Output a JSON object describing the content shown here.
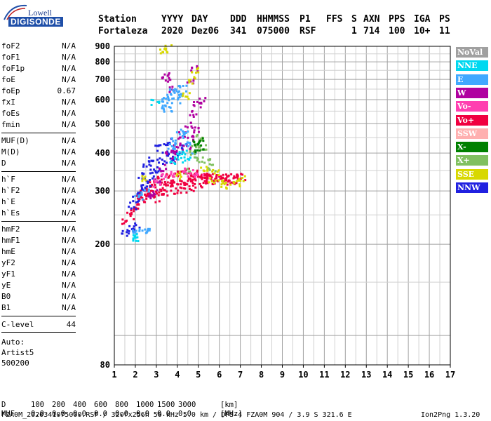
{
  "logo": {
    "lowell": "Lowell",
    "digisonde": "DIGISONDE"
  },
  "header": {
    "row1": [
      "Station",
      "YYYY",
      "DAY",
      "DDD",
      "HHMMSS",
      "P1",
      "FFS",
      "S",
      "AXN",
      "PPS",
      "IGA",
      "PS"
    ],
    "row2": [
      "Fortaleza",
      "2020",
      "Dez06",
      "341",
      "075000",
      "RSF",
      "",
      "1",
      "714",
      "100",
      "10+",
      "11"
    ]
  },
  "params_group1": [
    {
      "name": "foF2",
      "value": "N/A"
    },
    {
      "name": "foF1",
      "value": "N/A"
    },
    {
      "name": "foF1p",
      "value": "N/A"
    },
    {
      "name": "foE",
      "value": "N/A"
    },
    {
      "name": "foEp",
      "value": "0.67"
    },
    {
      "name": "fxI",
      "value": "N/A"
    },
    {
      "name": "foEs",
      "value": "N/A"
    },
    {
      "name": "fmin",
      "value": "N/A"
    }
  ],
  "params_group2": [
    {
      "name": "MUF(D)",
      "value": "N/A"
    },
    {
      "name": "M(D)",
      "value": "N/A"
    },
    {
      "name": "D",
      "value": "N/A"
    }
  ],
  "params_group3": [
    {
      "name": "h`F",
      "value": "N/A"
    },
    {
      "name": "h`F2",
      "value": "N/A"
    },
    {
      "name": "h`E",
      "value": "N/A"
    },
    {
      "name": "h`Es",
      "value": "N/A"
    }
  ],
  "params_group4": [
    {
      "name": "hmF2",
      "value": "N/A"
    },
    {
      "name": "hmF1",
      "value": "N/A"
    },
    {
      "name": "hmE",
      "value": "N/A"
    },
    {
      "name": "yF2",
      "value": "N/A"
    },
    {
      "name": "yF1",
      "value": "N/A"
    },
    {
      "name": "yE",
      "value": "N/A"
    },
    {
      "name": "B0",
      "value": "N/A"
    },
    {
      "name": "B1",
      "value": "N/A"
    }
  ],
  "clevel": {
    "name": "C-level",
    "value": "44"
  },
  "auto": {
    "line1": "Auto:",
    "line2": "Artist5",
    "line3": "500200"
  },
  "legend": [
    {
      "label": "NoVal",
      "color": "#a0a0a0"
    },
    {
      "label": "NNE",
      "color": "#00d8f0"
    },
    {
      "label": "E",
      "color": "#40a8ff"
    },
    {
      "label": "W",
      "color": "#b000a0"
    },
    {
      "label": "Vo-",
      "color": "#ff40b0"
    },
    {
      "label": "Vo+",
      "color": "#f00040"
    },
    {
      "label": "SSW",
      "color": "#ffb0b0"
    },
    {
      "label": "X-",
      "color": "#008000"
    },
    {
      "label": "X+",
      "color": "#80c060"
    },
    {
      "label": "SSE",
      "color": "#d8d800"
    },
    {
      "label": "NNW",
      "color": "#2020e0"
    }
  ],
  "mufs_table": {
    "row1": {
      "label": "D",
      "values": [
        "100",
        "200",
        "400",
        "600",
        "800",
        "1000",
        "1500",
        "3000"
      ],
      "unit": "[km]"
    },
    "row2": {
      "label": "MUF",
      "values": [
        "0.0",
        "0.0",
        "0.0",
        "0.0",
        "0.0",
        "0.0",
        "0.0",
        "0.0"
      ],
      "unit": "[MHz]"
    }
  },
  "footer": "FZA0M_2020341075000.RSF / 320fx256h 50 kHz 5.0 km / DPS-4 FZA0M 904 / 3.9 S 321.6 E",
  "footer_right": "Ion2Png 1.3.20",
  "chart_data": {
    "type": "scatter",
    "xlim": [
      1,
      17
    ],
    "ylim": [
      80,
      900
    ],
    "x_ticks": [
      1,
      2,
      3,
      4,
      5,
      6,
      7,
      8,
      9,
      10,
      11,
      12,
      13,
      14,
      15,
      16,
      17
    ],
    "y_ticks": [
      80,
      200,
      300,
      400,
      500,
      600,
      700,
      800,
      900
    ],
    "grid": true,
    "y_scale": "log",
    "xlabel": "",
    "ylabel": "",
    "series": [
      {
        "name": "Vo+",
        "color": "#f00040",
        "points": [
          [
            1.5,
            240
          ],
          [
            1.7,
            250
          ],
          [
            1.9,
            260
          ],
          [
            2.1,
            270
          ],
          [
            2.3,
            280
          ],
          [
            2.5,
            290
          ],
          [
            2.7,
            295
          ],
          [
            2.9,
            300
          ],
          [
            3.1,
            305
          ],
          [
            3.3,
            310
          ],
          [
            3.5,
            315
          ],
          [
            3.7,
            320
          ],
          [
            3.9,
            320
          ],
          [
            4.1,
            325
          ],
          [
            4.3,
            325
          ],
          [
            4.5,
            330
          ],
          [
            4.7,
            330
          ],
          [
            4.9,
            335
          ],
          [
            5.1,
            335
          ],
          [
            5.3,
            335
          ],
          [
            5.5,
            335
          ],
          [
            5.7,
            335
          ],
          [
            5.9,
            335
          ],
          [
            6.1,
            335
          ],
          [
            6.3,
            335
          ],
          [
            6.5,
            335
          ],
          [
            6.8,
            335
          ],
          [
            7.0,
            335
          ],
          [
            2.4,
            300
          ],
          [
            2.8,
            320
          ],
          [
            3.2,
            330
          ],
          [
            3.6,
            340
          ],
          [
            4.0,
            345
          ],
          [
            4.4,
            350
          ],
          [
            4.8,
            345
          ],
          [
            5.2,
            340
          ],
          [
            2.2,
            290
          ],
          [
            2.6,
            310
          ],
          [
            3.0,
            285
          ],
          [
            3.4,
            295
          ],
          [
            3.8,
            300
          ],
          [
            4.2,
            305
          ],
          [
            4.6,
            310
          ],
          [
            5.0,
            315
          ],
          [
            5.4,
            320
          ],
          [
            5.8,
            320
          ],
          [
            6.2,
            325
          ],
          [
            6.6,
            325
          ]
        ]
      },
      {
        "name": "NNW",
        "color": "#2020e0",
        "points": [
          [
            1.8,
            270
          ],
          [
            2.0,
            285
          ],
          [
            2.2,
            300
          ],
          [
            2.4,
            310
          ],
          [
            2.6,
            320
          ],
          [
            2.8,
            340
          ],
          [
            3.0,
            360
          ],
          [
            3.2,
            380
          ],
          [
            3.4,
            400
          ],
          [
            3.6,
            380
          ],
          [
            2.3,
            340
          ],
          [
            2.5,
            360
          ],
          [
            2.7,
            380
          ],
          [
            3.1,
            420
          ],
          [
            3.5,
            440
          ],
          [
            3.9,
            400
          ],
          [
            4.2,
            420
          ],
          [
            1.5,
            220
          ],
          [
            1.7,
            226
          ],
          [
            2.0,
            230
          ]
        ]
      },
      {
        "name": "W",
        "color": "#b000a0",
        "points": [
          [
            3.0,
            330
          ],
          [
            3.3,
            360
          ],
          [
            3.6,
            400
          ],
          [
            3.9,
            430
          ],
          [
            4.2,
            460
          ],
          [
            4.5,
            500
          ],
          [
            4.7,
            540
          ],
          [
            4.9,
            580
          ],
          [
            5.1,
            600
          ],
          [
            4.4,
            420
          ],
          [
            4.6,
            450
          ],
          [
            4.8,
            480
          ],
          [
            3.8,
            380
          ],
          [
            4.0,
            400
          ],
          [
            2.8,
            300
          ],
          [
            2.6,
            290
          ],
          [
            3.4,
            700
          ],
          [
            3.5,
            720
          ],
          [
            3.6,
            650
          ],
          [
            4.6,
            700
          ],
          [
            4.8,
            760
          ]
        ]
      },
      {
        "name": "E",
        "color": "#40a8ff",
        "points": [
          [
            3.2,
            580
          ],
          [
            3.4,
            600
          ],
          [
            3.6,
            620
          ],
          [
            3.8,
            640
          ],
          [
            4.0,
            650
          ],
          [
            4.2,
            660
          ],
          [
            3.5,
            560
          ],
          [
            3.9,
            600
          ],
          [
            4.1,
            620
          ],
          [
            3.7,
            420
          ],
          [
            3.9,
            440
          ],
          [
            4.1,
            460
          ],
          [
            4.3,
            470
          ],
          [
            4.5,
            430
          ],
          [
            4.7,
            400
          ],
          [
            2.0,
            222
          ],
          [
            2.3,
            222
          ],
          [
            2.6,
            222
          ],
          [
            2.1,
            290
          ],
          [
            2.4,
            300
          ]
        ]
      },
      {
        "name": "NNE",
        "color": "#00d8f0",
        "points": [
          [
            1.9,
            210
          ],
          [
            2.0,
            212
          ],
          [
            3.8,
            380
          ],
          [
            4.0,
            390
          ],
          [
            4.2,
            400
          ],
          [
            4.4,
            380
          ],
          [
            2.9,
            590
          ]
        ]
      },
      {
        "name": "X+",
        "color": "#80c060",
        "points": [
          [
            4.6,
            400
          ],
          [
            4.8,
            430
          ],
          [
            5.0,
            450
          ],
          [
            5.2,
            420
          ],
          [
            5.4,
            380
          ],
          [
            5.6,
            360
          ],
          [
            5.0,
            380
          ],
          [
            4.4,
            350
          ]
        ]
      },
      {
        "name": "SSE",
        "color": "#d8d800",
        "points": [
          [
            4.4,
            620
          ],
          [
            4.6,
            700
          ],
          [
            4.8,
            760
          ],
          [
            3.3,
            880
          ],
          [
            3.5,
            890
          ],
          [
            5.6,
            330
          ],
          [
            6.0,
            320
          ],
          [
            6.4,
            315
          ],
          [
            6.8,
            320
          ],
          [
            7.0,
            330
          ],
          [
            5.2,
            360
          ],
          [
            5.8,
            345
          ],
          [
            2.4,
            330
          ],
          [
            4.0,
            340
          ]
        ]
      },
      {
        "name": "Vo-",
        "color": "#ff40b0",
        "points": [
          [
            3.0,
            320
          ],
          [
            3.4,
            335
          ],
          [
            3.8,
            345
          ],
          [
            4.2,
            355
          ],
          [
            4.6,
            345
          ],
          [
            5.0,
            340
          ]
        ]
      },
      {
        "name": "X-",
        "color": "#008000",
        "points": [
          [
            4.9,
            430
          ],
          [
            5.0,
            410
          ],
          [
            5.1,
            440
          ]
        ]
      }
    ]
  }
}
